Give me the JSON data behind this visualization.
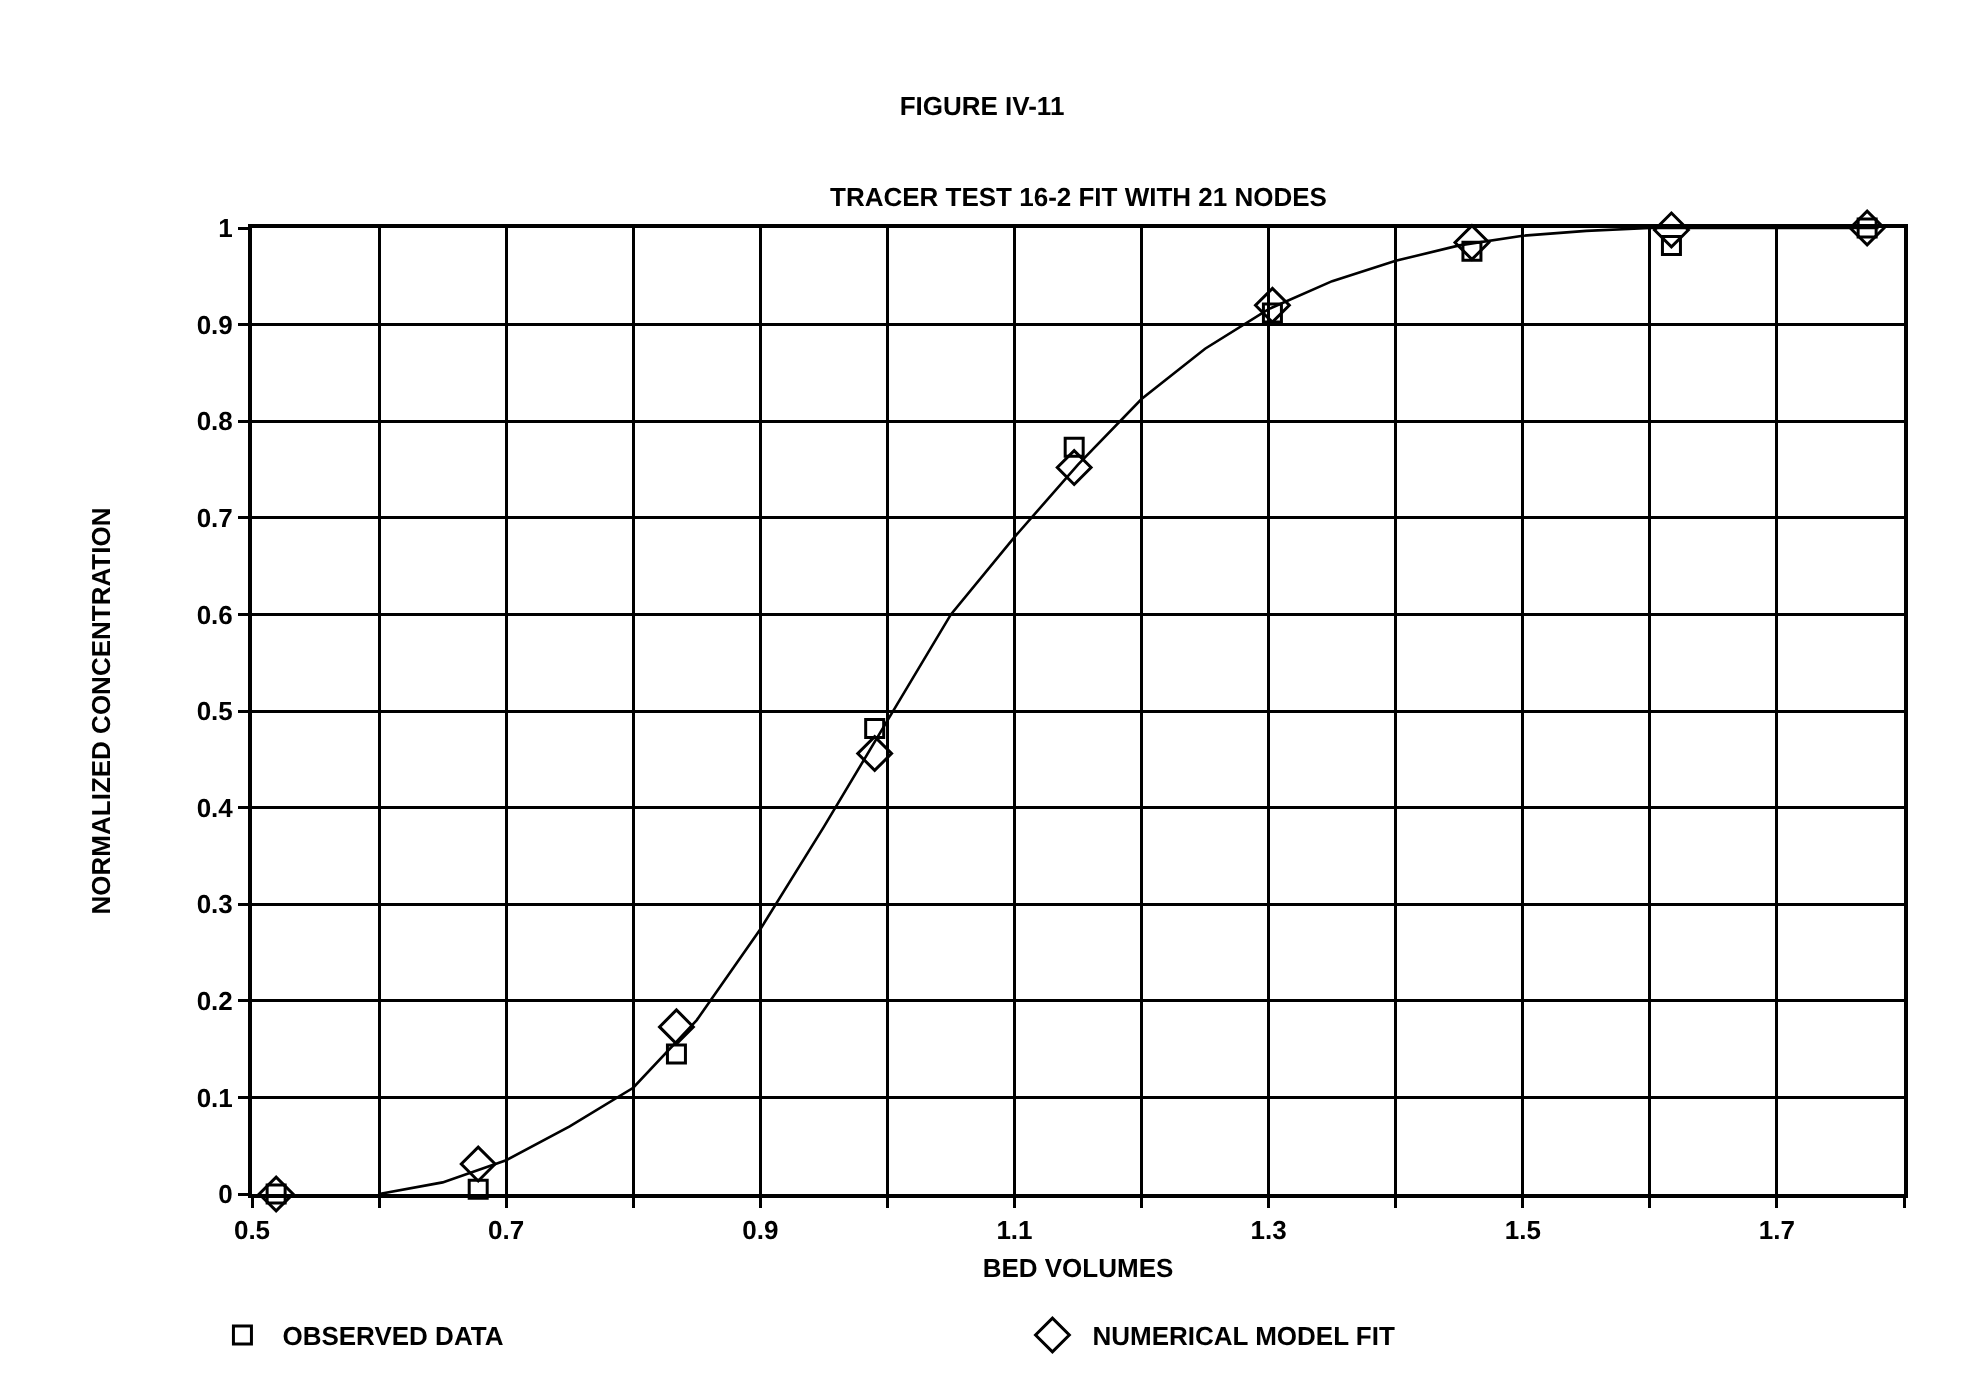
{
  "chart_data": {
    "type": "scatter",
    "title": "FIGURE IV-11",
    "subtitle": "TRACER TEST 16-2 FIT WITH 21 NODES",
    "xlabel": "BED VOLUMES",
    "ylabel": "NORMALIZED CONCENTRATION",
    "xlim": [
      0.5,
      1.8
    ],
    "xticks": [
      0.5,
      {
        "value": 0.6,
        "label": null
      },
      0.7,
      {
        "value": 0.8,
        "label": null
      },
      0.9,
      {
        "value": 1.0,
        "label": null
      },
      1.1,
      {
        "value": 1.2,
        "label": null
      },
      1.3,
      {
        "value": 1.4,
        "label": null
      },
      1.5,
      {
        "value": 1.6,
        "label": null
      },
      1.7,
      {
        "value": 1.8,
        "label": null
      }
    ],
    "ylim": [
      0,
      1
    ],
    "yticks": [
      0,
      0.1,
      0.2,
      0.3,
      0.4,
      0.5,
      0.6,
      0.7,
      0.8,
      0.9,
      1
    ],
    "grid": true,
    "legend": "bottom",
    "series": [
      {
        "name": "OBSERVED DATA",
        "marker": "square",
        "color": "#000000",
        "x": [
          0.519,
          0.678,
          0.834,
          0.99,
          1.147,
          1.303,
          1.46,
          1.617,
          1.771
        ],
        "values": [
          0,
          0.005,
          0.145,
          0.482,
          0.773,
          0.912,
          0.976,
          0.982,
          1.0
        ]
      },
      {
        "name": "NUMERICAL MODEL FIT",
        "marker": "diamond",
        "color": "#000000",
        "x": [
          0.519,
          0.678,
          0.834,
          0.99,
          1.147,
          1.303,
          1.46,
          1.617,
          1.771
        ],
        "values": [
          0,
          0.031,
          0.173,
          0.456,
          0.752,
          0.92,
          0.985,
          0.998,
          1.0
        ]
      },
      {
        "type": "line",
        "marker": "none",
        "line_style": "solid",
        "color": "#000000",
        "x": [
          0.6,
          0.65,
          0.7,
          0.75,
          0.8,
          0.85,
          0.9,
          0.95,
          1.0,
          1.05,
          1.1,
          1.15,
          1.2,
          1.25,
          1.3,
          1.35,
          1.4,
          1.45,
          1.5,
          1.55,
          1.6,
          1.78
        ],
        "values": [
          0,
          0.012,
          0.035,
          0.07,
          0.11,
          0.18,
          0.274,
          0.38,
          0.49,
          0.6,
          0.68,
          0.755,
          0.823,
          0.875,
          0.916,
          0.945,
          0.966,
          0.982,
          0.992,
          0.997,
          1.0,
          1.0
        ]
      }
    ]
  }
}
